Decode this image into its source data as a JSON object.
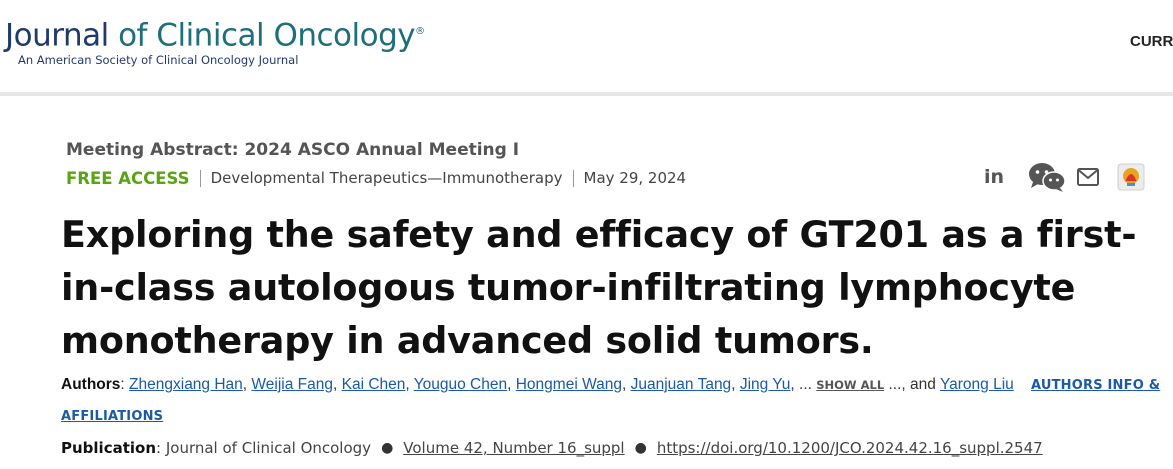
{
  "header": {
    "logo_journal": "Journal",
    "logo_rest": "of Clinical Oncology",
    "logo_reg": "®",
    "logo_subtitle": "An American Society of Clinical Oncology Journal",
    "nav_current": "CURR"
  },
  "article": {
    "meeting": "Meeting Abstract: 2024 ASCO Annual Meeting I",
    "access": "FREE ACCESS",
    "topic": "Developmental Therapeutics—Immunotherapy",
    "date": "May 29, 2024",
    "title": "Exploring the safety and efficacy of GT201 as a first-in-class autologous tumor-infiltrating lymphocyte monotherapy in advanced solid tumors.",
    "share_icons": [
      "linkedin-icon",
      "wechat-icon",
      "mail-icon",
      "bookmark-icon"
    ]
  },
  "authors": {
    "label": "Authors",
    "list": [
      "Zhengxiang Han",
      "Weijia Fang",
      "Kai Chen",
      "Youguo Chen",
      "Hongmei Wang",
      "Juanjuan Tang",
      "Jing Yu"
    ],
    "ellipsis": "...",
    "show_all": "SHOW ALL",
    "tail_ellipsis": "..., and",
    "last_author": "Yarong Liu",
    "info_link": "AUTHORS INFO & AFFILIATIONS"
  },
  "publication": {
    "label": "Publication",
    "journal": "Journal of Clinical Oncology",
    "volume": "Volume 42, Number 16_suppl",
    "doi": "https://doi.org/10.1200/JCO.2024.42.16_suppl.2547"
  },
  "colors": {
    "free_access": "#5aa313",
    "link": "#1a5aa8",
    "logo_navy": "#1f3b6e",
    "logo_teal": "#1f6f7a"
  }
}
